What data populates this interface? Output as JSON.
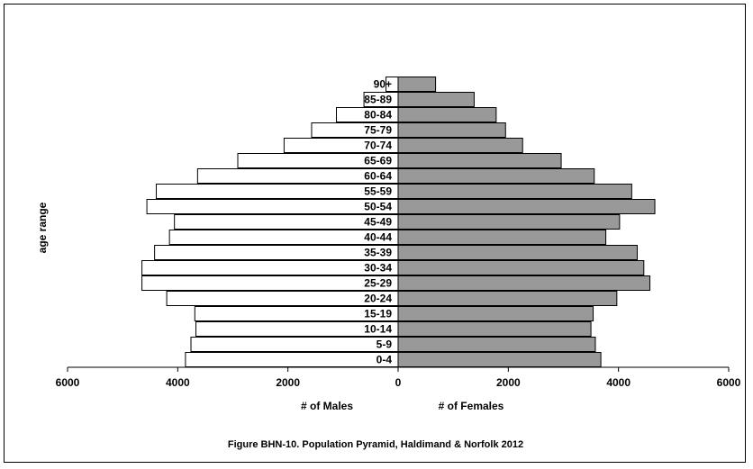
{
  "chart_data": {
    "type": "bar",
    "orientation": "horizontal",
    "layout": "population-pyramid",
    "title": "Figure BHN-10.  Population Pyramid, Haldimand & Norfolk 2012",
    "ylabel": "age range",
    "xlabel_left": "# of Males",
    "xlabel_right": "# of  Females",
    "categories": [
      "0-4",
      "5-9",
      "10-14",
      "15-19",
      "20-24",
      "25-29",
      "30-34",
      "35-39",
      "40-44",
      "45-49",
      "50-54",
      "55-59",
      "60-64",
      "65-69",
      "70-74",
      "75-79",
      "80-84",
      "85-89",
      "90+"
    ],
    "series": [
      {
        "name": "# of Males",
        "side": "left",
        "values": [
          3860,
          3760,
          3670,
          3690,
          4200,
          4650,
          4650,
          4420,
          4150,
          4060,
          4560,
          4390,
          3640,
          2910,
          2070,
          1570,
          1120,
          620,
          220
        ]
      },
      {
        "name": "# of  Females",
        "side": "right",
        "values": [
          3680,
          3580,
          3500,
          3540,
          3970,
          4570,
          4460,
          4340,
          3770,
          4020,
          4660,
          4240,
          3560,
          2960,
          2260,
          1950,
          1780,
          1380,
          680
        ]
      }
    ],
    "x_ticks": [
      "6000",
      "4000",
      "2000",
      "0",
      "2000",
      "4000",
      "6000"
    ],
    "xlim": [
      -6000,
      6000
    ],
    "grid": false,
    "colors": {
      "male": "#ffffff",
      "female": "#999999",
      "stroke": "#000000"
    }
  }
}
